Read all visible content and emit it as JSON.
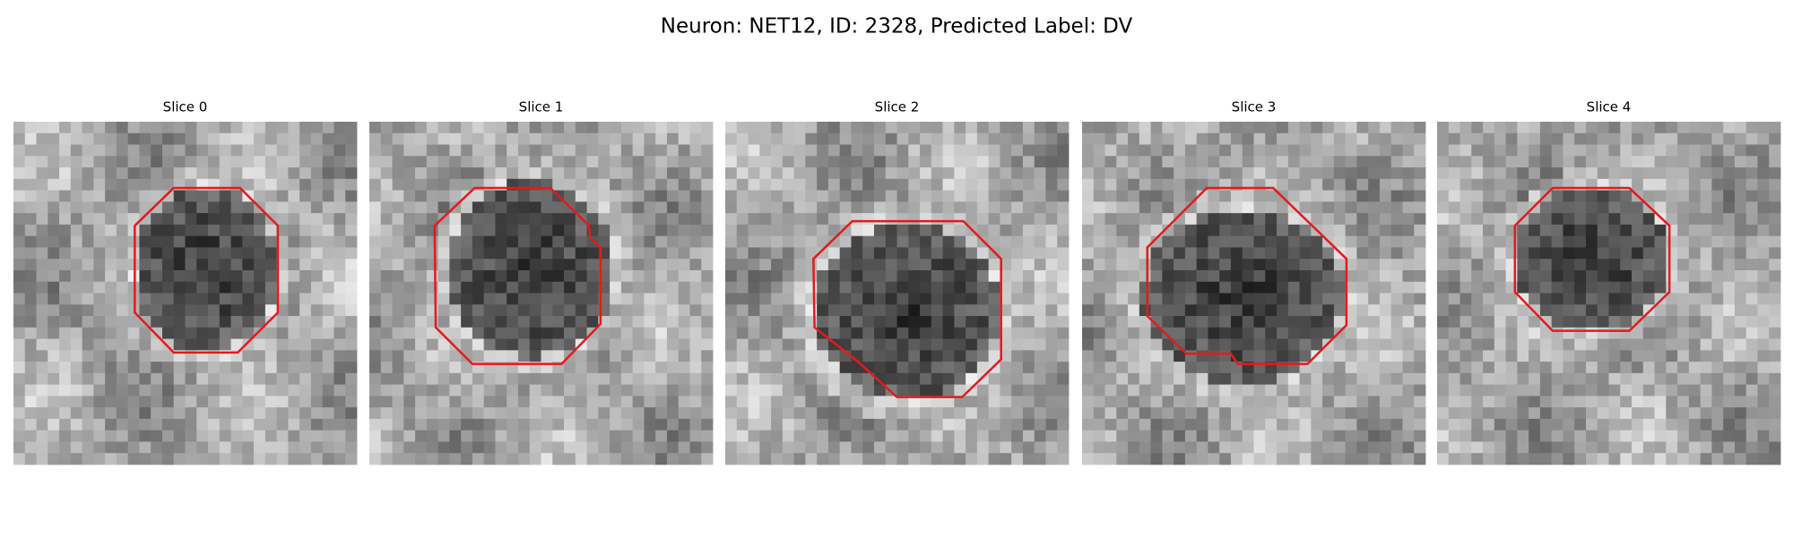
{
  "title": "Neuron: NET12, ID: 2328, Predicted Label: DV",
  "panels": [
    {
      "title": "Slice 0"
    },
    {
      "title": "Slice 1"
    },
    {
      "title": "Slice 2"
    },
    {
      "title": "Slice 3"
    },
    {
      "title": "Slice 4"
    }
  ]
}
